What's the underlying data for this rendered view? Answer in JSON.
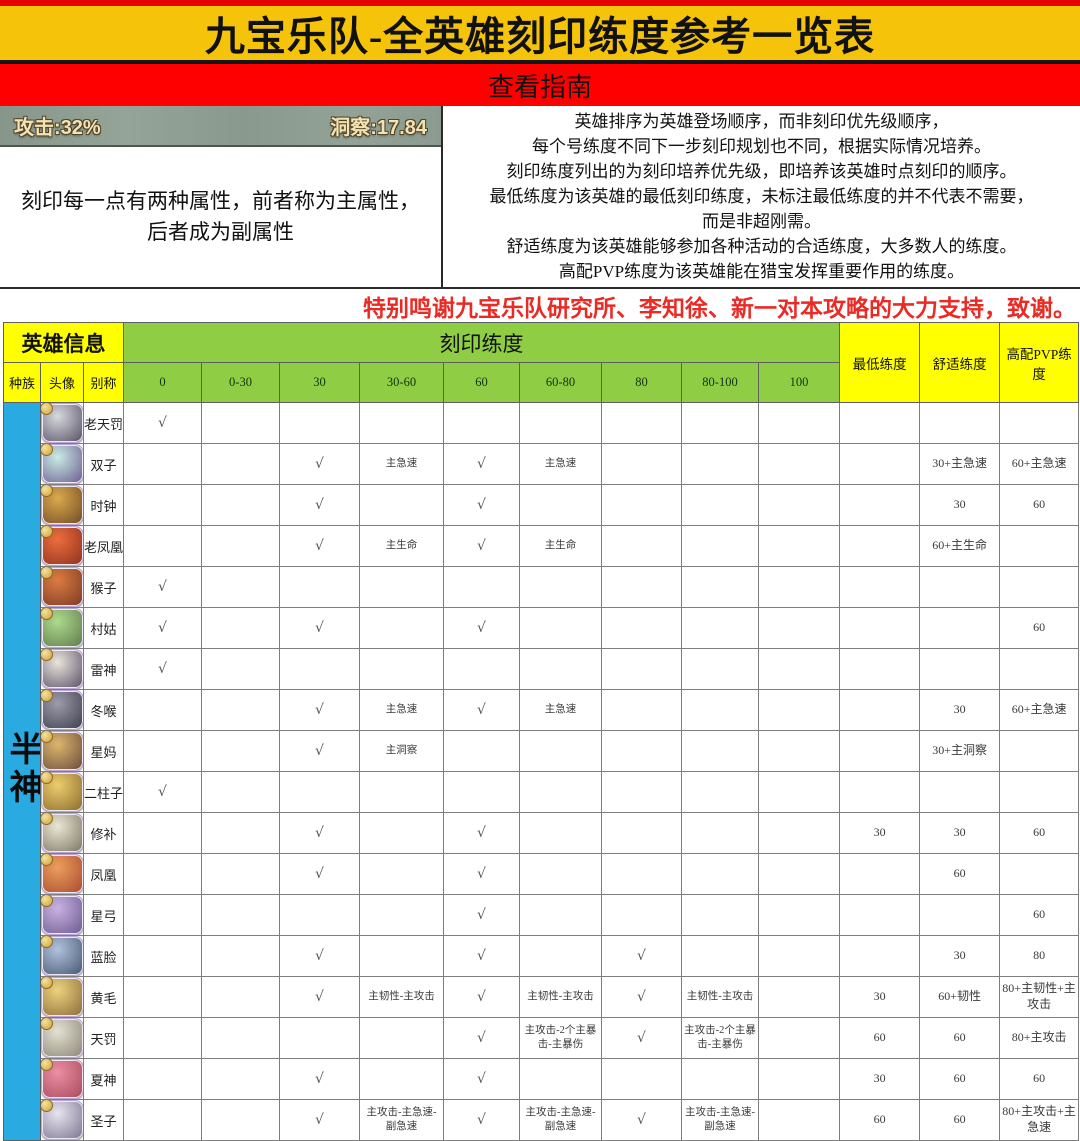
{
  "banner": {
    "title": "九宝乐队-全英雄刻印练度参考一览表"
  },
  "guide_bar": {
    "label": "查看指南"
  },
  "info": {
    "stat_bar": {
      "left": "攻击:32%",
      "right": "洞察:17.84"
    },
    "left_note_line1": "刻印每一点有两种属性，前者称为主属性，",
    "left_note_line2": "后者成为副属性",
    "right_lines": [
      "英雄排序为英雄登场顺序，而非刻印优先级顺序，",
      "每个号练度不同下一步刻印规划也不同，根据实际情况培养。",
      "刻印练度列出的为刻印培养优先级，即培养该英雄时点刻印的顺序。",
      "最低练度为该英雄的最低刻印练度，未标注最低练度的并不代表不需要，",
      "而是非超刚需。",
      "舒适练度为该英雄能够参加各种活动的合适练度，大多数人的练度。",
      "高配PVP练度为该英雄能在猎宝发挥重要作用的练度。"
    ]
  },
  "thanks": "特别鸣谢九宝乐队研究所、李知徐、新一对本攻略的大力支持，致谢。",
  "colors": {
    "banner_yellow": "#f5c40a",
    "bar_red": "#fe0000",
    "header_yellow": "#ffff00",
    "header_green": "#8fce44",
    "race_blue": "#29abe2",
    "thanks_red": "#ea2a25"
  },
  "table": {
    "header": {
      "hero_info": "英雄信息",
      "engrave": "刻印练度",
      "min": "最低练度",
      "comfort": "舒适练度",
      "pvp": "高配PVP练度",
      "race": "种族",
      "avatar": "头像",
      "alias": "别称",
      "levels": [
        "0",
        "0-30",
        "30",
        "30-60",
        "60",
        "60-80",
        "80",
        "80-100",
        "100"
      ]
    },
    "race_label": "半神",
    "rows": [
      {
        "name": "老天罚",
        "avatar": [
          "#d6dade",
          "#564e63"
        ],
        "cells": [
          "√",
          "",
          "",
          "",
          "",
          "",
          "",
          "",
          ""
        ],
        "min": "",
        "comfort": "",
        "pvp": ""
      },
      {
        "name": "双子",
        "avatar": [
          "#c9ece4",
          "#6b5a8e"
        ],
        "cells": [
          "",
          "",
          "√",
          "主急速",
          "√",
          "主急速",
          "",
          "",
          ""
        ],
        "min": "",
        "comfort": "30+主急速",
        "pvp": "60+主急速"
      },
      {
        "name": "时钟",
        "avatar": [
          "#dca94f",
          "#6e4a22"
        ],
        "cells": [
          "",
          "",
          "√",
          "",
          "√",
          "",
          "",
          "",
          ""
        ],
        "min": "",
        "comfort": "30",
        "pvp": "60"
      },
      {
        "name": "老凤凰",
        "avatar": [
          "#ec6e3c",
          "#8e2f1f"
        ],
        "cells": [
          "",
          "",
          "√",
          "主生命",
          "√",
          "主生命",
          "",
          "",
          ""
        ],
        "min": "",
        "comfort": "60+主生命",
        "pvp": ""
      },
      {
        "name": "猴子",
        "avatar": [
          "#dd7b41",
          "#7a3a24"
        ],
        "cells": [
          "√",
          "",
          "",
          "",
          "",
          "",
          "",
          "",
          ""
        ],
        "min": "",
        "comfort": "",
        "pvp": ""
      },
      {
        "name": "村姑",
        "avatar": [
          "#aeda8e",
          "#5d7a4a"
        ],
        "cells": [
          "√",
          "",
          "√",
          "",
          "√",
          "",
          "",
          "",
          ""
        ],
        "min": "",
        "comfort": "",
        "pvp": "60"
      },
      {
        "name": "雷神",
        "avatar": [
          "#e9e5db",
          "#5a4f66"
        ],
        "cells": [
          "√",
          "",
          "",
          "",
          "",
          "",
          "",
          "",
          ""
        ],
        "min": "",
        "comfort": "",
        "pvp": ""
      },
      {
        "name": "冬喉",
        "avatar": [
          "#9c9caa",
          "#3d3d4d"
        ],
        "cells": [
          "",
          "",
          "√",
          "主急速",
          "√",
          "主急速",
          "",
          "",
          ""
        ],
        "min": "",
        "comfort": "30",
        "pvp": "60+主急速"
      },
      {
        "name": "星妈",
        "avatar": [
          "#dcb66e",
          "#6a4a3a"
        ],
        "cells": [
          "",
          "",
          "√",
          "主洞察",
          "",
          "",
          "",
          "",
          ""
        ],
        "min": "",
        "comfort": "30+主洞察",
        "pvp": ""
      },
      {
        "name": "二柱子",
        "avatar": [
          "#eccd6e",
          "#8a6a2a"
        ],
        "cells": [
          "√",
          "",
          "",
          "",
          "",
          "",
          "",
          "",
          ""
        ],
        "min": "",
        "comfort": "",
        "pvp": ""
      },
      {
        "name": "修补",
        "avatar": [
          "#ece6d6",
          "#7a7462"
        ],
        "cells": [
          "",
          "",
          "√",
          "",
          "√",
          "",
          "",
          "",
          ""
        ],
        "min": "30",
        "comfort": "30",
        "pvp": "60"
      },
      {
        "name": "凤凰",
        "avatar": [
          "#ec9e5e",
          "#a84a2f"
        ],
        "cells": [
          "",
          "",
          "√",
          "",
          "√",
          "",
          "",
          "",
          ""
        ],
        "min": "",
        "comfort": "60",
        "pvp": ""
      },
      {
        "name": "星弓",
        "avatar": [
          "#cab2e2",
          "#6a5a8e"
        ],
        "cells": [
          "",
          "",
          "",
          "",
          "√",
          "",
          "",
          "",
          ""
        ],
        "min": "",
        "comfort": "",
        "pvp": "60"
      },
      {
        "name": "蓝脸",
        "avatar": [
          "#b2c2de",
          "#44566e"
        ],
        "cells": [
          "",
          "",
          "√",
          "",
          "√",
          "",
          "√",
          "",
          ""
        ],
        "min": "",
        "comfort": "30",
        "pvp": "80"
      },
      {
        "name": "黄毛",
        "avatar": [
          "#ecd37e",
          "#8a6a3a"
        ],
        "cells": [
          "",
          "",
          "√",
          "主韧性-主攻击",
          "√",
          "主韧性-主攻击",
          "√",
          "主韧性-主攻击",
          ""
        ],
        "min": "30",
        "comfort": "60+韧性",
        "pvp": "80+主韧性+主攻击"
      },
      {
        "name": "天罚",
        "avatar": [
          "#e4e1d4",
          "#8a8472"
        ],
        "cells": [
          "",
          "",
          "",
          "",
          "√",
          "主攻击-2个主暴击-主暴伤",
          "√",
          "主攻击-2个主暴击-主暴伤",
          ""
        ],
        "min": "60",
        "comfort": "60",
        "pvp": "80+主攻击"
      },
      {
        "name": "夏神",
        "avatar": [
          "#ec8ea4",
          "#a84a5a"
        ],
        "cells": [
          "",
          "",
          "√",
          "",
          "√",
          "",
          "",
          "",
          ""
        ],
        "min": "30",
        "comfort": "60",
        "pvp": "60"
      },
      {
        "name": "圣子",
        "avatar": [
          "#e8e4ee",
          "#7a7490"
        ],
        "cells": [
          "",
          "",
          "√",
          "主攻击-主急速-副急速",
          "√",
          "主攻击-主急速-副急速",
          "√",
          "主攻击-主急速-副急速",
          ""
        ],
        "min": "60",
        "comfort": "60",
        "pvp": "80+主攻击+主急速"
      }
    ]
  }
}
